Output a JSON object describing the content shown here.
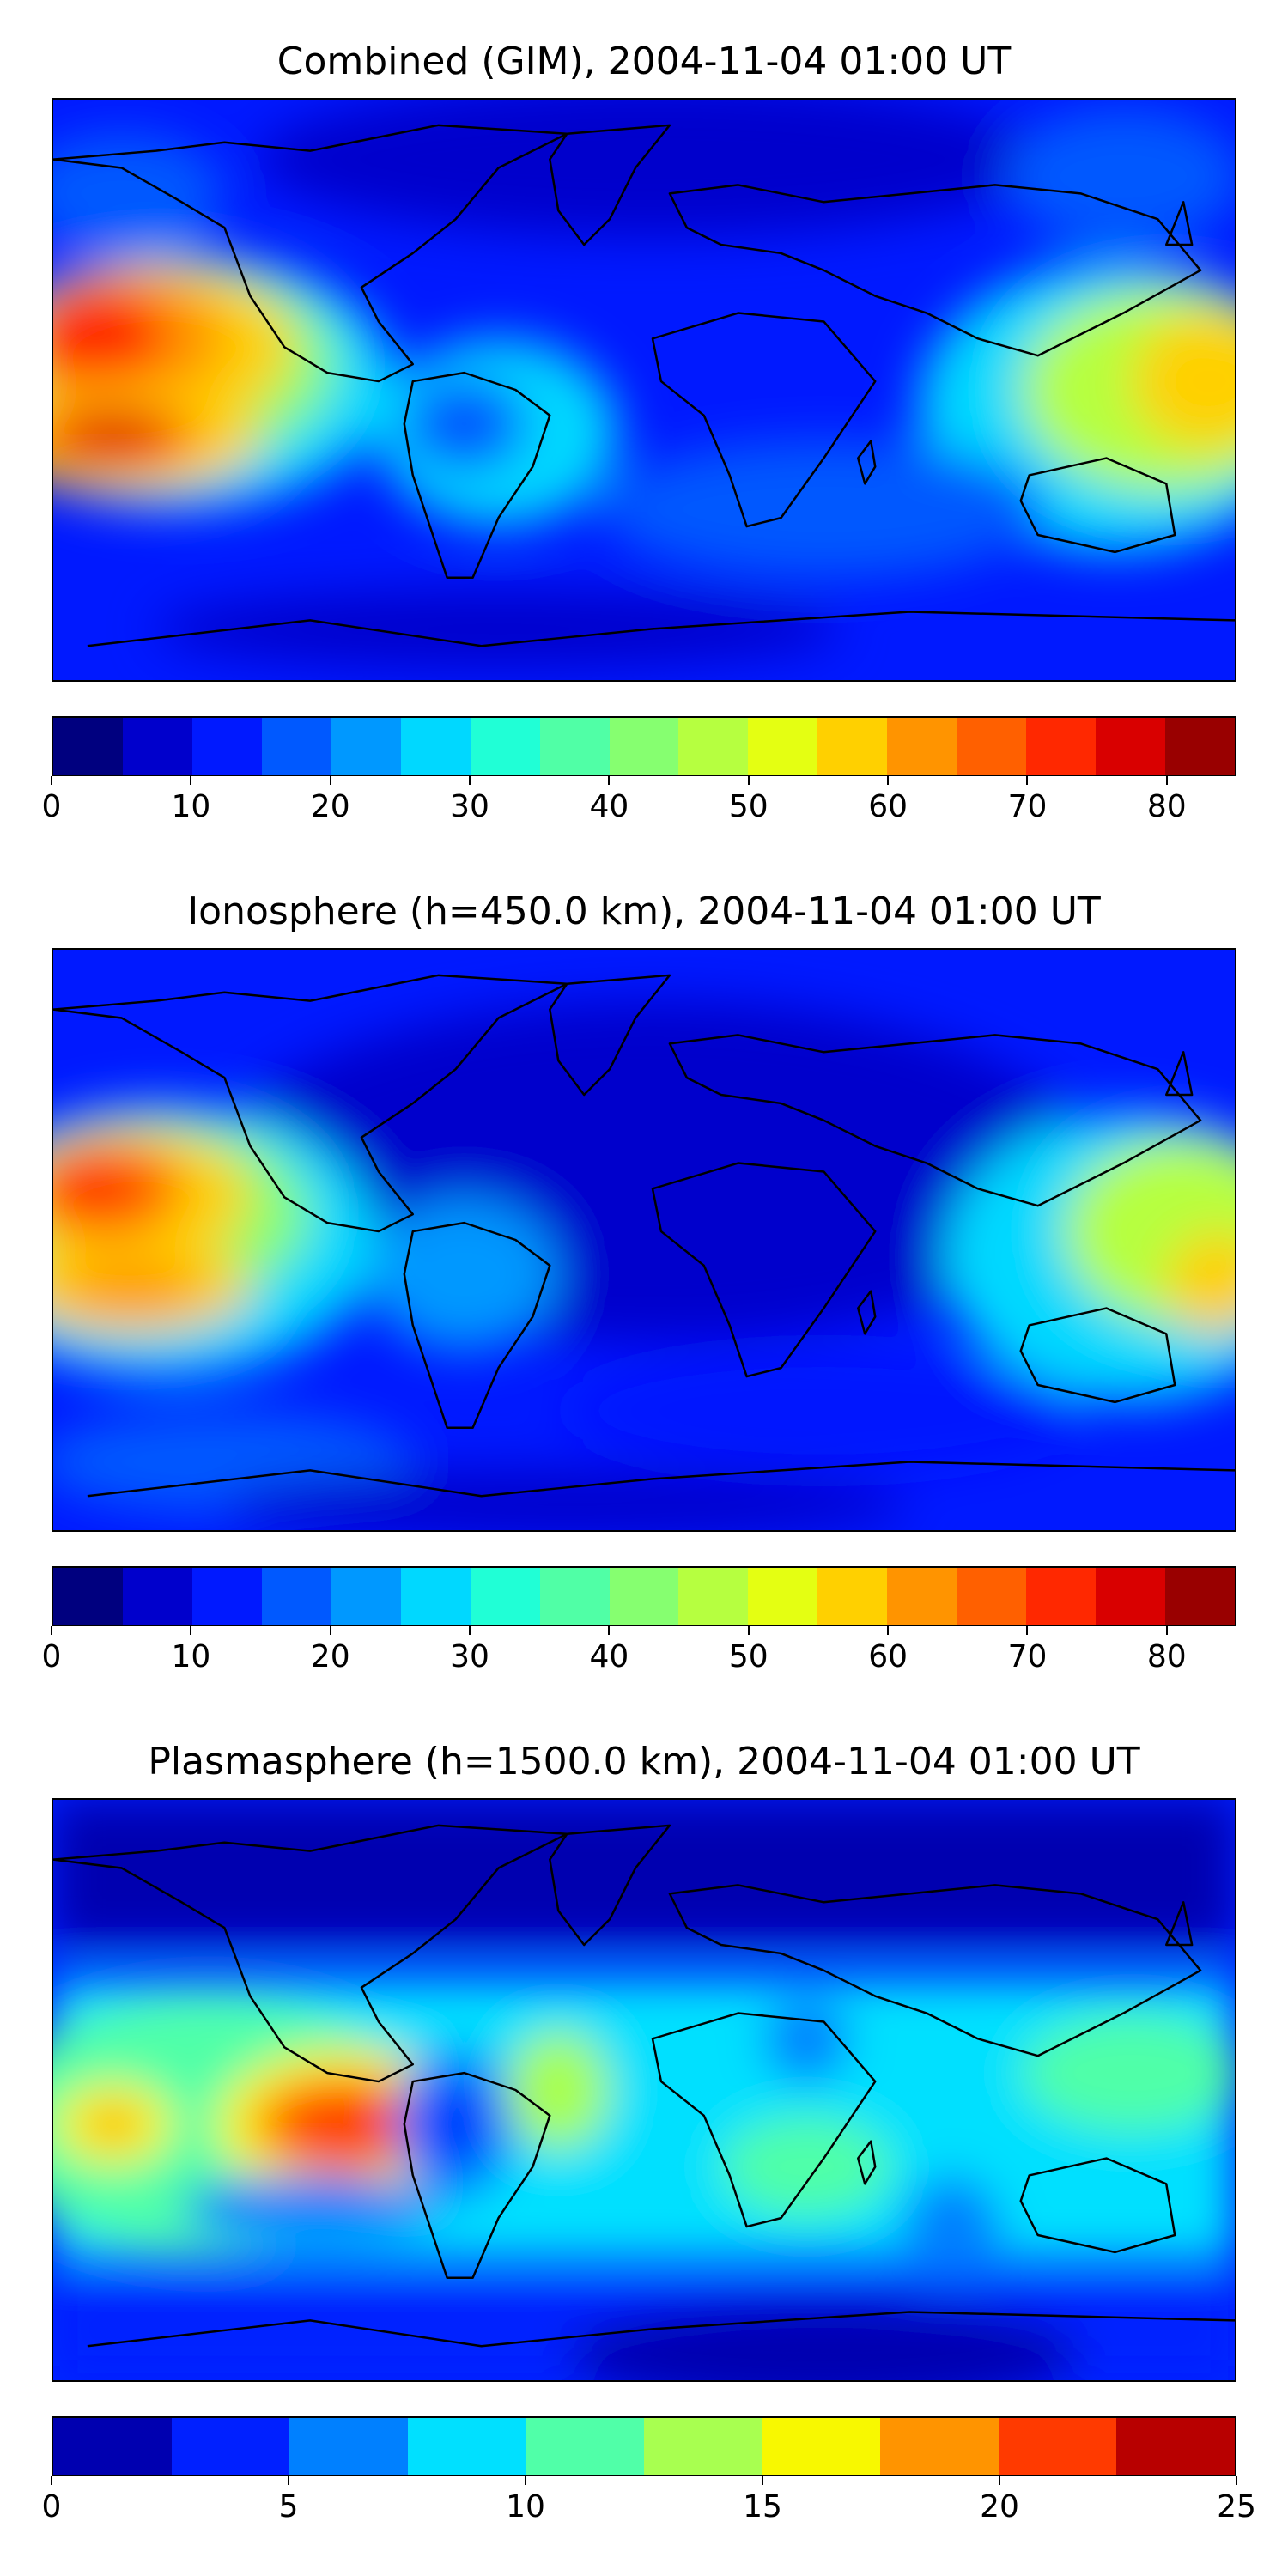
{
  "panels": [
    {
      "title": "Combined (GIM), 2004-11-04 01:00 UT",
      "colorbar": {
        "min": 0,
        "max": 85,
        "step": 5,
        "ticks": [
          "0",
          "10",
          "20",
          "30",
          "40",
          "50",
          "60",
          "70",
          "80"
        ],
        "tick_values": [
          0,
          10,
          20,
          30,
          40,
          50,
          60,
          70,
          80
        ]
      }
    },
    {
      "title": "Ionosphere  (h=450.0 km), 2004-11-04 01:00 UT",
      "colorbar": {
        "min": 0,
        "max": 85,
        "step": 5,
        "ticks": [
          "0",
          "10",
          "20",
          "30",
          "40",
          "50",
          "60",
          "70",
          "80"
        ],
        "tick_values": [
          0,
          10,
          20,
          30,
          40,
          50,
          60,
          70,
          80
        ]
      }
    },
    {
      "title": "Plasmasphere (h=1500.0 km), 2004-11-04 01:00 UT",
      "colorbar": {
        "min": 0,
        "max": 25,
        "step": 2.5,
        "ticks": [
          "0",
          "5",
          "10",
          "15",
          "20",
          "25"
        ],
        "tick_values": [
          0,
          5,
          10,
          15,
          20,
          25
        ]
      }
    }
  ],
  "colormap17": [
    "#00007f",
    "#0000cc",
    "#0019ff",
    "#0059ff",
    "#0098ff",
    "#00d8ff",
    "#20ffd6",
    "#50ffa6",
    "#86ff70",
    "#b6ff40",
    "#e4ff12",
    "#ffd000",
    "#ff9400",
    "#ff6000",
    "#ff2800",
    "#d90000",
    "#990000"
  ],
  "colormap10": [
    "#0000b0",
    "#0020ff",
    "#0080ff",
    "#00e0ff",
    "#50ffa8",
    "#a8ff50",
    "#f8f800",
    "#ff9400",
    "#ff3a00",
    "#b80000"
  ]
}
